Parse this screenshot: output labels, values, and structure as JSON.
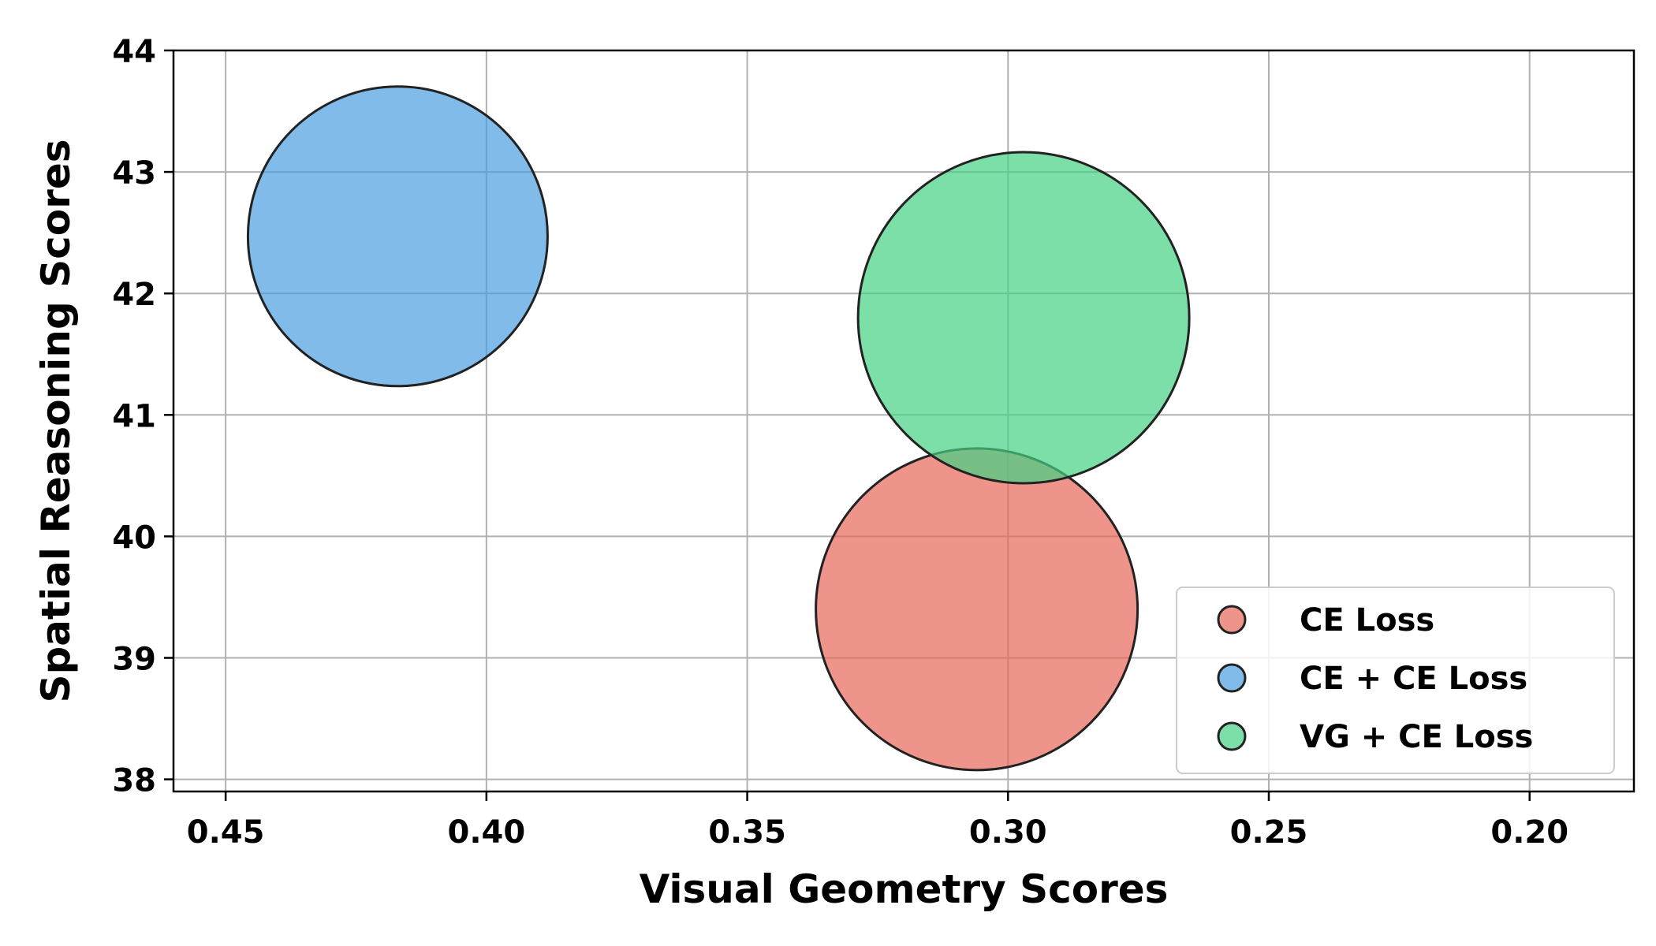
{
  "chart_data": {
    "type": "scatter",
    "xlabel": "Visual Geometry Scores",
    "ylabel": "Spatial Reasoning Scores",
    "xlim": [
      0.46,
      0.18
    ],
    "ylim": [
      37.9,
      44
    ],
    "x_reversed": true,
    "x_ticks": [
      "0.45",
      "0.40",
      "0.35",
      "0.30",
      "0.25",
      "0.20"
    ],
    "y_ticks": [
      "38",
      "39",
      "40",
      "41",
      "42",
      "43",
      "44"
    ],
    "grid": true,
    "legend_position": "bottom-right",
    "series": [
      {
        "name": "CE Loss",
        "color": "#e8665a",
        "x": 0.306,
        "y": 39.4
      },
      {
        "name": "CE + CE Loss",
        "color": "#4a9ee0",
        "x": 0.417,
        "y": 42.47
      },
      {
        "name": "VG + CE Loss",
        "color": "#45d183",
        "x": 0.297,
        "y": 41.8
      }
    ]
  }
}
